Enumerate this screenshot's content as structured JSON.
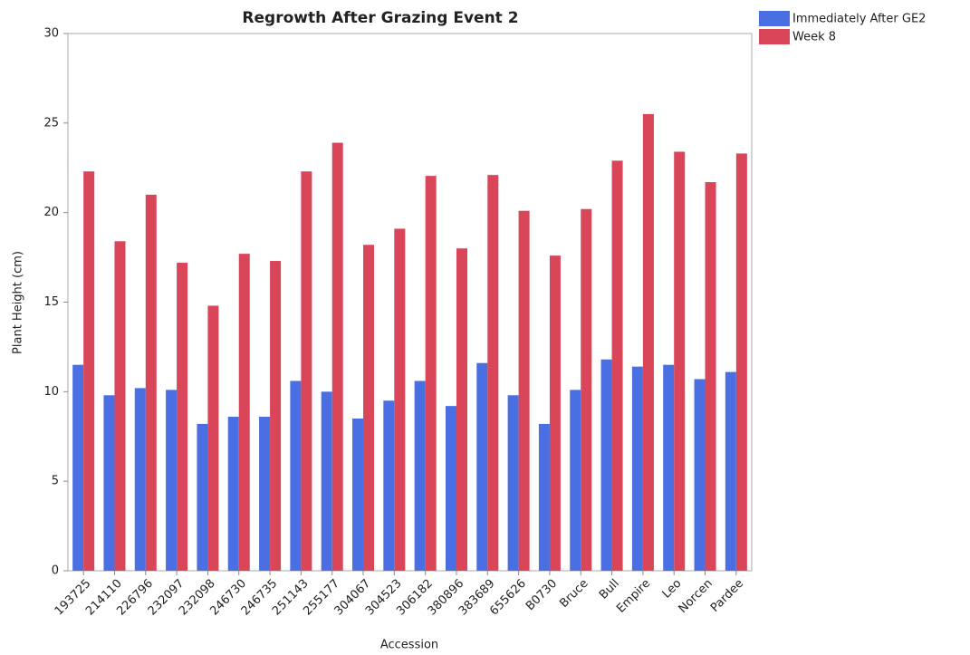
{
  "chart_data": {
    "type": "bar",
    "title": "Regrowth After Grazing Event 2",
    "x_label": "Accession",
    "y_label": "Plant Height (cm)",
    "categories": [
      "193725",
      "214110",
      "226796",
      "232097",
      "232098",
      "246730",
      "246735",
      "251143",
      "255177",
      "304067",
      "304523",
      "306182",
      "380896",
      "383689",
      "655626",
      "B0730",
      "Bruce",
      "Bull",
      "Empire",
      "Leo",
      "Norcen",
      "Pardee"
    ],
    "series": [
      {
        "name": "Immediately After GE2",
        "color": "#4a6fe3",
        "values": [
          11.5,
          9.8,
          10.2,
          10.1,
          8.2,
          8.6,
          8.6,
          10.6,
          10.0,
          8.5,
          9.5,
          10.6,
          9.2,
          11.6,
          9.8,
          8.2,
          10.1,
          11.8,
          11.4,
          11.5,
          10.7,
          11.1
        ]
      },
      {
        "name": "Week 8",
        "color": "#d9465a",
        "values": [
          22.3,
          18.4,
          21.0,
          17.2,
          14.8,
          17.7,
          17.3,
          22.3,
          23.9,
          18.2,
          19.1,
          22.05,
          18.0,
          22.1,
          20.1,
          17.6,
          20.2,
          22.9,
          25.5,
          23.4,
          21.7,
          23.3
        ]
      }
    ],
    "ylim": [
      0,
      30
    ],
    "yticks": [
      0,
      5,
      10,
      15,
      20,
      25,
      30
    ]
  }
}
